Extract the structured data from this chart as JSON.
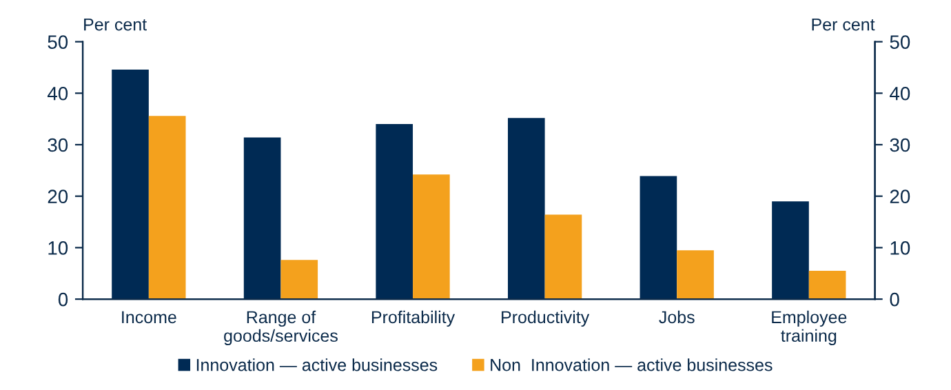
{
  "chart_data": {
    "type": "bar",
    "categories": [
      "Income",
      "Range of\ngoods/services",
      "Profitability",
      "Productivity",
      "Jobs",
      "Employee\ntraining"
    ],
    "series": [
      {
        "name": "Innovation — active businesses",
        "color": "#002a54",
        "values": [
          44.6,
          31.4,
          34.0,
          35.2,
          23.9,
          19.0
        ]
      },
      {
        "name": "Non  Innovation — active businesses",
        "color": "#f4a11d",
        "values": [
          35.6,
          7.6,
          24.2,
          16.4,
          9.5,
          5.5
        ]
      }
    ],
    "ylabel": "Per cent",
    "y2label": "Per cent",
    "ylim": [
      0,
      50
    ],
    "yticks": [
      0,
      10,
      20,
      30,
      40,
      50
    ],
    "y2lim": [
      0,
      50
    ],
    "y2ticks": [
      0,
      10,
      20,
      30,
      40,
      50
    ],
    "grid": false,
    "legend": "bottom"
  }
}
